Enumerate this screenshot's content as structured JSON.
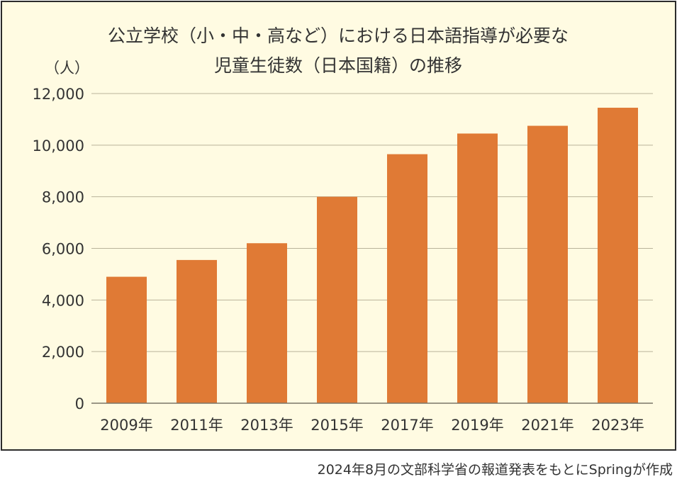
{
  "chart_data": {
    "type": "bar",
    "title_lines": [
      "公立学校（小・中・高など）における日本語指導が必要な",
      "児童生徒数（日本国籍）の推移"
    ],
    "ylabel": "（人）",
    "xlabel": "",
    "categories": [
      "2009年",
      "2011年",
      "2013年",
      "2015年",
      "2017年",
      "2019年",
      "2021年",
      "2023年"
    ],
    "values": [
      4900,
      5550,
      6200,
      8000,
      9650,
      10450,
      10750,
      11450
    ],
    "ylim": [
      0,
      12000
    ],
    "yticks": [
      0,
      2000,
      4000,
      6000,
      8000,
      10000,
      12000
    ],
    "ytick_labels": [
      "0",
      "2,000",
      "4,000",
      "6,000",
      "8,000",
      "10,000",
      "12,000"
    ],
    "grid": true,
    "bar_color": "#e07a35",
    "grid_color": "#b9b39a",
    "background_color": "#fffbe2"
  },
  "source_note": "2024年8月の文部科学省の報道発表をもとにSpringが作成"
}
